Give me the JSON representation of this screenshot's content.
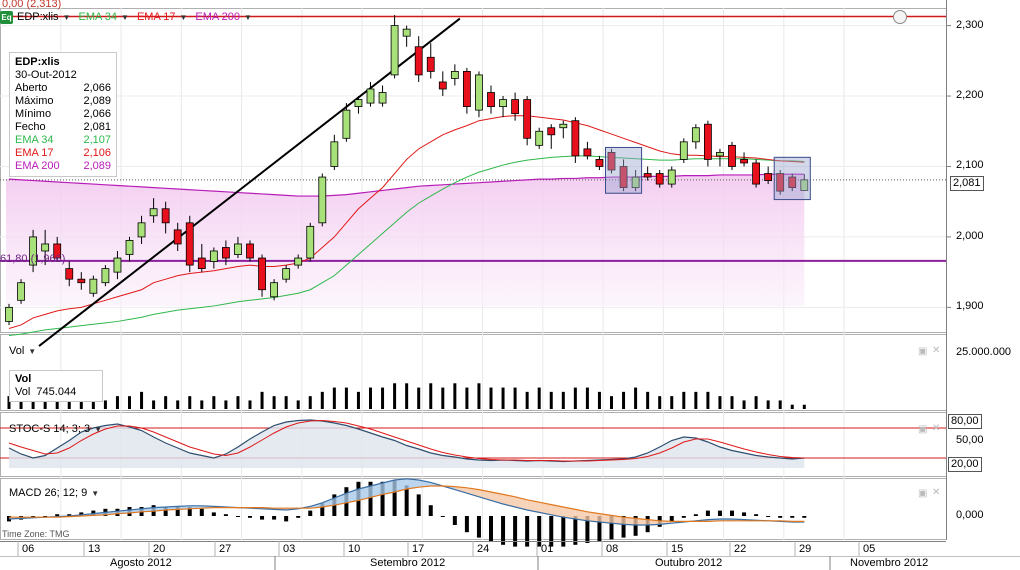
{
  "colors": {
    "bull": "#a8e07a",
    "bear": "#e8101c",
    "ema34": "#2eb84a",
    "ema17": "#e01818",
    "ema200": "#b81cb8",
    "fib": "#8b1f9e",
    "stoch_k": "#2f4f6f",
    "stoch_d": "#e01818",
    "macd": "#3a6ea5",
    "signal": "#e07820"
  },
  "header": {
    "top_readout": "0,00 (2,313)",
    "symbol": "EDP:xlis",
    "logo": "Eq",
    "ema34_label": "EMA 34",
    "ema17_label": "EMA 17",
    "ema200_label": "EMA 200"
  },
  "infobox": {
    "symbol": "EDP:xlis",
    "date": "30-Out-2012",
    "rows": [
      {
        "label": "Aberto",
        "value": "2,066",
        "color": "#000000"
      },
      {
        "label": "Máximo",
        "value": "2,089",
        "color": "#000000"
      },
      {
        "label": "Mínimo",
        "value": "2,066",
        "color": "#000000"
      },
      {
        "label": "Fecho",
        "value": "2,081",
        "color": "#000000"
      },
      {
        "label": "EMA 34",
        "value": "2,107",
        "color": "#2eb84a"
      },
      {
        "label": "EMA 17",
        "value": "2,106",
        "color": "#e01818"
      },
      {
        "label": "EMA 200",
        "value": "2,089",
        "color": "#b81cb8"
      }
    ]
  },
  "fib_label": "61,80 (1,966)",
  "last_price_tag": "2,081",
  "vol_panel": {
    "label": "Vol",
    "box_title": "Vol",
    "box_label": "Vol",
    "box_value": "745.044",
    "axis_label": "25.000.000"
  },
  "stoch_panel": {
    "label": "STOC-S 14; 3; 3",
    "levels": [
      "80,00",
      "50,00",
      "20,00"
    ]
  },
  "macd_panel": {
    "label": "MACD 26; 12; 9",
    "axis_label": "0,000"
  },
  "timezone": "Time Zone: TMG",
  "x_ticks": [
    "06",
    "13",
    "20",
    "27",
    "03",
    "10",
    "17",
    "24",
    "01",
    "08",
    "15",
    "22",
    "29",
    "05"
  ],
  "months": [
    "Agosto 2012",
    "Setembro 2012",
    "Outubro 2012",
    "Novembro 2012"
  ],
  "y_ticks": [
    "2,300",
    "2,200",
    "2,100",
    "2,000",
    "1,900"
  ],
  "chart_data": {
    "type": "candlestick",
    "title": "EDP:xlis",
    "ylim": [
      1.865,
      2.325
    ],
    "y_ticks": [
      2.3,
      2.2,
      2.1,
      2.0,
      1.9
    ],
    "hlines": [
      2.313,
      1.966,
      2.081
    ],
    "candles": [
      {
        "o": 1.88,
        "h": 1.905,
        "l": 1.875,
        "c": 1.9
      },
      {
        "o": 1.91,
        "h": 1.94,
        "l": 1.905,
        "c": 1.935
      },
      {
        "o": 1.96,
        "h": 2.01,
        "l": 1.95,
        "c": 2.0
      },
      {
        "o": 1.98,
        "h": 2.01,
        "l": 1.96,
        "c": 1.99
      },
      {
        "o": 1.99,
        "h": 2.0,
        "l": 1.965,
        "c": 1.97
      },
      {
        "o": 1.955,
        "h": 1.965,
        "l": 1.93,
        "c": 1.94
      },
      {
        "o": 1.94,
        "h": 1.95,
        "l": 1.925,
        "c": 1.935
      },
      {
        "o": 1.92,
        "h": 1.945,
        "l": 1.915,
        "c": 1.94
      },
      {
        "o": 1.935,
        "h": 1.96,
        "l": 1.93,
        "c": 1.955
      },
      {
        "o": 1.95,
        "h": 1.98,
        "l": 1.94,
        "c": 1.97
      },
      {
        "o": 1.975,
        "h": 2.0,
        "l": 1.965,
        "c": 1.995
      },
      {
        "o": 2.0,
        "h": 2.03,
        "l": 1.99,
        "c": 2.02
      },
      {
        "o": 2.03,
        "h": 2.055,
        "l": 2.02,
        "c": 2.04
      },
      {
        "o": 2.04,
        "h": 2.05,
        "l": 2.005,
        "c": 2.02
      },
      {
        "o": 2.01,
        "h": 2.02,
        "l": 1.98,
        "c": 1.99
      },
      {
        "o": 2.02,
        "h": 2.03,
        "l": 1.95,
        "c": 1.96
      },
      {
        "o": 1.97,
        "h": 1.99,
        "l": 1.95,
        "c": 1.955
      },
      {
        "o": 1.965,
        "h": 1.985,
        "l": 1.955,
        "c": 1.98
      },
      {
        "o": 1.985,
        "h": 1.995,
        "l": 1.96,
        "c": 1.97
      },
      {
        "o": 1.975,
        "h": 2.0,
        "l": 1.97,
        "c": 1.99
      },
      {
        "o": 1.99,
        "h": 1.995,
        "l": 1.965,
        "c": 1.97
      },
      {
        "o": 1.97,
        "h": 1.975,
        "l": 1.915,
        "c": 1.925
      },
      {
        "o": 1.915,
        "h": 1.94,
        "l": 1.91,
        "c": 1.935
      },
      {
        "o": 1.94,
        "h": 1.96,
        "l": 1.935,
        "c": 1.955
      },
      {
        "o": 1.96,
        "h": 1.975,
        "l": 1.955,
        "c": 1.97
      },
      {
        "o": 1.97,
        "h": 2.02,
        "l": 1.965,
        "c": 2.015
      },
      {
        "o": 2.02,
        "h": 2.09,
        "l": 2.015,
        "c": 2.085
      },
      {
        "o": 2.1,
        "h": 2.145,
        "l": 2.095,
        "c": 2.135
      },
      {
        "o": 2.14,
        "h": 2.19,
        "l": 2.135,
        "c": 2.18
      },
      {
        "o": 2.185,
        "h": 2.2,
        "l": 2.175,
        "c": 2.195
      },
      {
        "o": 2.19,
        "h": 2.22,
        "l": 2.185,
        "c": 2.21
      },
      {
        "o": 2.19,
        "h": 2.215,
        "l": 2.185,
        "c": 2.205
      },
      {
        "o": 2.23,
        "h": 2.315,
        "l": 2.225,
        "c": 2.3
      },
      {
        "o": 2.285,
        "h": 2.3,
        "l": 2.27,
        "c": 2.295
      },
      {
        "o": 2.27,
        "h": 2.285,
        "l": 2.22,
        "c": 2.23
      },
      {
        "o": 2.255,
        "h": 2.275,
        "l": 2.225,
        "c": 2.235
      },
      {
        "o": 2.22,
        "h": 2.235,
        "l": 2.2,
        "c": 2.21
      },
      {
        "o": 2.225,
        "h": 2.245,
        "l": 2.215,
        "c": 2.235
      },
      {
        "o": 2.235,
        "h": 2.24,
        "l": 2.175,
        "c": 2.185
      },
      {
        "o": 2.18,
        "h": 2.235,
        "l": 2.17,
        "c": 2.23
      },
      {
        "o": 2.205,
        "h": 2.215,
        "l": 2.175,
        "c": 2.185
      },
      {
        "o": 2.185,
        "h": 2.2,
        "l": 2.17,
        "c": 2.195
      },
      {
        "o": 2.195,
        "h": 2.205,
        "l": 2.165,
        "c": 2.175
      },
      {
        "o": 2.195,
        "h": 2.2,
        "l": 2.13,
        "c": 2.14
      },
      {
        "o": 2.13,
        "h": 2.155,
        "l": 2.125,
        "c": 2.15
      },
      {
        "o": 2.155,
        "h": 2.16,
        "l": 2.125,
        "c": 2.145
      },
      {
        "o": 2.155,
        "h": 2.165,
        "l": 2.14,
        "c": 2.16
      },
      {
        "o": 2.165,
        "h": 2.17,
        "l": 2.105,
        "c": 2.115
      },
      {
        "o": 2.125,
        "h": 2.135,
        "l": 2.11,
        "c": 2.115
      },
      {
        "o": 2.11,
        "h": 2.115,
        "l": 2.095,
        "c": 2.1
      },
      {
        "o": 2.12,
        "h": 2.125,
        "l": 2.09,
        "c": 2.095
      },
      {
        "o": 2.1,
        "h": 2.11,
        "l": 2.065,
        "c": 2.07
      },
      {
        "o": 2.07,
        "h": 2.095,
        "l": 2.065,
        "c": 2.085
      },
      {
        "o": 2.09,
        "h": 2.1,
        "l": 2.08,
        "c": 2.085
      },
      {
        "o": 2.09,
        "h": 2.095,
        "l": 2.07,
        "c": 2.075
      },
      {
        "o": 2.075,
        "h": 2.1,
        "l": 2.07,
        "c": 2.095
      },
      {
        "o": 2.11,
        "h": 2.14,
        "l": 2.105,
        "c": 2.135
      },
      {
        "o": 2.135,
        "h": 2.16,
        "l": 2.125,
        "c": 2.155
      },
      {
        "o": 2.16,
        "h": 2.165,
        "l": 2.1,
        "c": 2.11
      },
      {
        "o": 2.115,
        "h": 2.125,
        "l": 2.1,
        "c": 2.12
      },
      {
        "o": 2.13,
        "h": 2.135,
        "l": 2.095,
        "c": 2.1
      },
      {
        "o": 2.11,
        "h": 2.12,
        "l": 2.1,
        "c": 2.105
      },
      {
        "o": 2.105,
        "h": 2.11,
        "l": 2.07,
        "c": 2.075
      },
      {
        "o": 2.09,
        "h": 2.1,
        "l": 2.075,
        "c": 2.08
      },
      {
        "o": 2.09,
        "h": 2.095,
        "l": 2.06,
        "c": 2.065
      },
      {
        "o": 2.085,
        "h": 2.09,
        "l": 2.065,
        "c": 2.07
      },
      {
        "o": 2.066,
        "h": 2.089,
        "l": 2.066,
        "c": 2.081
      }
    ],
    "ema17": [
      1.87,
      1.875,
      1.885,
      1.89,
      1.895,
      1.898,
      1.9,
      1.905,
      1.91,
      1.915,
      1.92,
      1.925,
      1.935,
      1.94,
      1.945,
      1.948,
      1.95,
      1.952,
      1.955,
      1.958,
      1.96,
      1.958,
      1.958,
      1.96,
      1.963,
      1.97,
      1.985,
      2.0,
      2.02,
      2.04,
      2.055,
      2.07,
      2.09,
      2.11,
      2.125,
      2.135,
      2.145,
      2.152,
      2.158,
      2.165,
      2.168,
      2.171,
      2.172,
      2.172,
      2.17,
      2.168,
      2.166,
      2.162,
      2.158,
      2.152,
      2.146,
      2.14,
      2.134,
      2.128,
      2.122,
      2.118,
      2.116,
      2.116,
      2.115,
      2.114,
      2.114,
      2.113,
      2.112,
      2.11,
      2.108,
      2.107,
      2.106
    ],
    "ema34": [
      1.86,
      1.862,
      1.865,
      1.868,
      1.87,
      1.872,
      1.874,
      1.876,
      1.878,
      1.88,
      1.883,
      1.886,
      1.89,
      1.893,
      1.896,
      1.898,
      1.9,
      1.902,
      1.905,
      1.908,
      1.91,
      1.912,
      1.914,
      1.917,
      1.92,
      1.925,
      1.935,
      1.945,
      1.96,
      1.975,
      1.99,
      2.005,
      2.02,
      2.035,
      2.048,
      2.058,
      2.068,
      2.077,
      2.085,
      2.092,
      2.097,
      2.102,
      2.106,
      2.109,
      2.111,
      2.113,
      2.114,
      2.115,
      2.115,
      2.114,
      2.113,
      2.112,
      2.111,
      2.11,
      2.109,
      2.109,
      2.11,
      2.111,
      2.111,
      2.111,
      2.111,
      2.111,
      2.11,
      2.109,
      2.108,
      2.108,
      2.107
    ],
    "ema200": [
      2.082,
      2.081,
      2.08,
      2.079,
      2.078,
      2.077,
      2.076,
      2.075,
      2.074,
      2.073,
      2.072,
      2.071,
      2.07,
      2.069,
      2.068,
      2.067,
      2.066,
      2.065,
      2.064,
      2.063,
      2.062,
      2.061,
      2.06,
      2.059,
      2.058,
      2.058,
      2.058,
      2.059,
      2.06,
      2.062,
      2.064,
      2.066,
      2.068,
      2.07,
      2.072,
      2.073,
      2.074,
      2.075,
      2.076,
      2.077,
      2.078,
      2.079,
      2.08,
      2.081,
      2.082,
      2.082,
      2.083,
      2.083,
      2.084,
      2.084,
      2.085,
      2.085,
      2.085,
      2.086,
      2.086,
      2.086,
      2.087,
      2.087,
      2.087,
      2.088,
      2.088,
      2.088,
      2.088,
      2.089,
      2.089,
      2.089,
      2.089
    ],
    "volume": [
      3,
      2,
      4,
      3,
      3,
      2,
      3,
      2,
      2,
      3,
      3,
      4,
      2,
      3,
      2,
      3,
      2,
      3,
      2,
      3,
      2,
      4,
      3,
      3,
      2,
      3,
      4,
      5,
      5,
      4,
      5,
      5,
      6,
      6,
      5,
      6,
      5,
      6,
      5,
      6,
      5,
      5,
      5,
      4,
      5,
      4,
      4,
      5,
      5,
      4,
      3,
      4,
      5,
      4,
      3,
      3,
      4,
      4,
      4,
      3,
      3,
      2,
      3,
      2,
      2,
      1,
      1
    ],
    "vol_scale": 25000000,
    "stoch_k": [
      40,
      28,
      20,
      25,
      40,
      55,
      72,
      80,
      85,
      88,
      82,
      75,
      62,
      50,
      40,
      30,
      25,
      20,
      28,
      42,
      58,
      72,
      85,
      92,
      95,
      96,
      94,
      90,
      85,
      78,
      70,
      62,
      55,
      45,
      38,
      30,
      25,
      22,
      18,
      16,
      15,
      16,
      15,
      14,
      15,
      14,
      13,
      14,
      15,
      16,
      17,
      18,
      22,
      30,
      42,
      55,
      62,
      60,
      52,
      42,
      35,
      30,
      25,
      22,
      20,
      18,
      20
    ],
    "stoch_d": [
      50,
      42,
      35,
      28,
      30,
      40,
      55,
      68,
      78,
      84,
      84,
      80,
      72,
      62,
      52,
      42,
      35,
      28,
      25,
      30,
      42,
      56,
      70,
      82,
      90,
      94,
      95,
      93,
      90,
      84,
      78,
      70,
      62,
      54,
      46,
      38,
      31,
      26,
      22,
      19,
      17,
      16,
      16,
      15,
      15,
      15,
      14,
      14,
      14,
      15,
      16,
      17,
      19,
      23,
      30,
      40,
      52,
      58,
      58,
      52,
      45,
      38,
      32,
      27,
      23,
      21,
      20
    ],
    "macd": [
      -0.005,
      -0.004,
      -0.003,
      -0.002,
      -0.001,
      0.0,
      0.002,
      0.004,
      0.006,
      0.008,
      0.01,
      0.012,
      0.014,
      0.015,
      0.016,
      0.017,
      0.017,
      0.016,
      0.015,
      0.014,
      0.013,
      0.012,
      0.011,
      0.01,
      0.012,
      0.016,
      0.022,
      0.03,
      0.038,
      0.045,
      0.05,
      0.055,
      0.06,
      0.062,
      0.06,
      0.056,
      0.05,
      0.044,
      0.038,
      0.032,
      0.026,
      0.02,
      0.015,
      0.01,
      0.006,
      0.002,
      -0.002,
      -0.005,
      -0.008,
      -0.01,
      -0.012,
      -0.014,
      -0.015,
      -0.015,
      -0.014,
      -0.012,
      -0.01,
      -0.008,
      -0.006,
      -0.005,
      -0.005,
      -0.006,
      -0.007,
      -0.008,
      -0.009,
      -0.01,
      -0.01
    ],
    "signal": [
      -0.002,
      -0.002,
      -0.002,
      -0.002,
      -0.002,
      -0.001,
      0.0,
      0.001,
      0.002,
      0.004,
      0.005,
      0.007,
      0.008,
      0.01,
      0.011,
      0.012,
      0.013,
      0.014,
      0.014,
      0.014,
      0.014,
      0.014,
      0.013,
      0.013,
      0.013,
      0.013,
      0.015,
      0.018,
      0.022,
      0.026,
      0.031,
      0.036,
      0.04,
      0.045,
      0.048,
      0.05,
      0.05,
      0.049,
      0.047,
      0.044,
      0.04,
      0.036,
      0.032,
      0.027,
      0.023,
      0.019,
      0.015,
      0.011,
      0.007,
      0.004,
      0.001,
      -0.002,
      -0.004,
      -0.006,
      -0.008,
      -0.009,
      -0.009,
      -0.009,
      -0.009,
      -0.008,
      -0.008,
      -0.008,
      -0.008,
      -0.008,
      -0.008,
      -0.009,
      -0.009
    ],
    "trendline": [
      [
        0,
        1.845
      ],
      [
        37,
        2.31
      ]
    ]
  }
}
